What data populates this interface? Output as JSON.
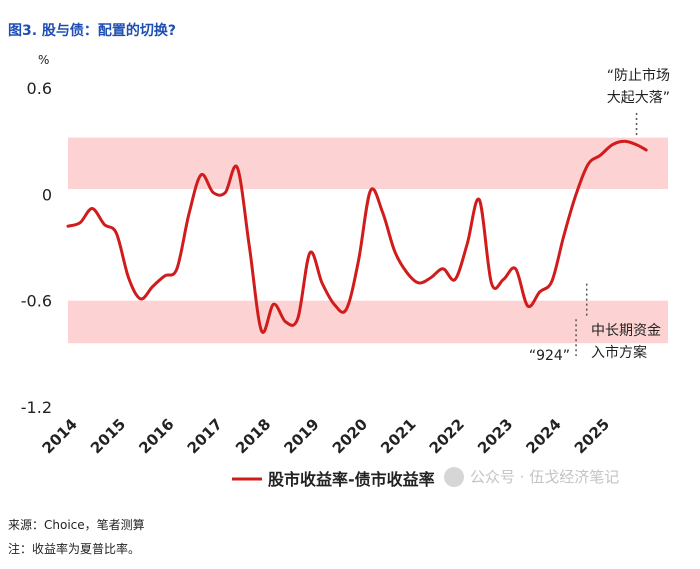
{
  "figure": {
    "title": "图3. 股与债：配置的切换?",
    "source_note": "来源：Choice，笔者测算",
    "footnote": "注：收益率为夏普比率。",
    "watermark": "公众号 · 伍戈经济笔记"
  },
  "colors": {
    "line": "#d01c1c",
    "band": "#fdd2d2",
    "title": "#1f4fb4"
  },
  "chart_data": {
    "type": "line",
    "title": "",
    "xlabel": "",
    "ylabel": "%",
    "x_tick_labels": [
      "2014",
      "2015",
      "2016",
      "2017",
      "2018",
      "2019",
      "2020",
      "2021",
      "2022",
      "2023",
      "2024",
      "2025"
    ],
    "y_ticks": [
      0.6,
      0,
      -0.6,
      -1.2
    ],
    "y_tick_labels": [
      "0.6",
      "0",
      "-0.6",
      "-1.2"
    ],
    "xlim": [
      2014,
      2026.4
    ],
    "ylim": [
      -1.2,
      0.6
    ],
    "grid": false,
    "legend_position": "bottom-center",
    "bands": [
      {
        "from": 0.03,
        "to": 0.32
      },
      {
        "from": -0.84,
        "to": -0.6
      }
    ],
    "series": [
      {
        "name": "股市收益率-债市收益率",
        "x": [
          2014.0,
          2014.25,
          2014.5,
          2014.75,
          2015.0,
          2015.25,
          2015.5,
          2015.75,
          2016.0,
          2016.25,
          2016.5,
          2016.75,
          2017.0,
          2017.25,
          2017.5,
          2017.75,
          2018.0,
          2018.25,
          2018.5,
          2018.75,
          2019.0,
          2019.25,
          2019.5,
          2019.75,
          2020.0,
          2020.25,
          2020.5,
          2020.75,
          2021.0,
          2021.25,
          2021.5,
          2021.75,
          2022.0,
          2022.25,
          2022.5,
          2022.75,
          2023.0,
          2023.25,
          2023.5,
          2023.75,
          2024.0,
          2024.25,
          2024.5,
          2024.75,
          2025.0,
          2025.25,
          2025.5,
          2025.75,
          2025.95
        ],
        "values": [
          -0.18,
          -0.16,
          -0.08,
          -0.17,
          -0.22,
          -0.47,
          -0.59,
          -0.52,
          -0.46,
          -0.42,
          -0.11,
          0.11,
          0.01,
          0.01,
          0.15,
          -0.3,
          -0.77,
          -0.62,
          -0.72,
          -0.7,
          -0.33,
          -0.5,
          -0.62,
          -0.65,
          -0.38,
          0.02,
          -0.1,
          -0.32,
          -0.44,
          -0.5,
          -0.47,
          -0.42,
          -0.48,
          -0.28,
          -0.03,
          -0.5,
          -0.48,
          -0.42,
          -0.63,
          -0.55,
          -0.49,
          -0.23,
          0.0,
          0.17,
          0.22,
          0.28,
          0.3,
          0.28,
          0.25
        ]
      }
    ],
    "annotations": [
      {
        "id": "fangzhi",
        "text_lines": [
          "“防止市场",
          "大起大落”"
        ],
        "x": 2025.75,
        "y": 0.29
      },
      {
        "id": "zhongchang",
        "text_lines": [
          "中长期资金",
          "入市方案"
        ],
        "x": 2024.72,
        "y": -0.47
      },
      {
        "id": "g924",
        "text_lines": [
          "“924”"
        ],
        "x": 2024.5,
        "y": -0.66
      }
    ]
  }
}
